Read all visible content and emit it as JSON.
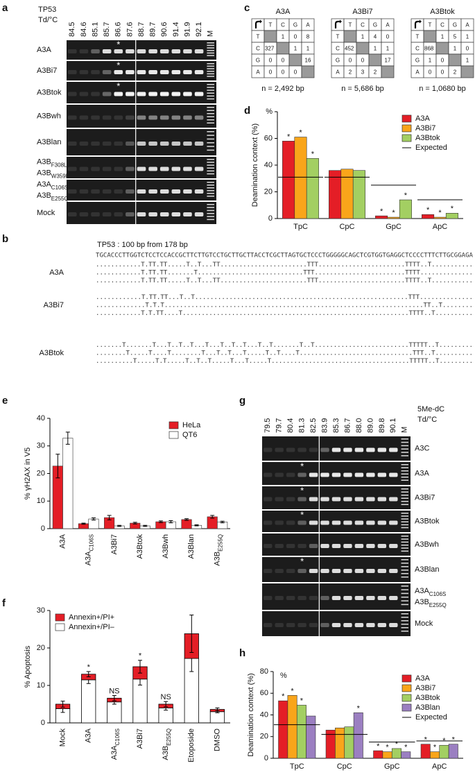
{
  "panel_labels": [
    "a",
    "b",
    "c",
    "d",
    "e",
    "f",
    "g",
    "h"
  ],
  "gel_a": {
    "header": [
      "TP53",
      "Td/°C"
    ],
    "temperatures": [
      "84.5",
      "84.6",
      "85.1",
      "85.7",
      "86.6",
      "87.6",
      "88.7",
      "89.7",
      "90.6",
      "91.4",
      "91.9",
      "92.1"
    ],
    "marker": "M",
    "lanes": [
      {
        "label": [
          "A3A"
        ],
        "mark": "*"
      },
      {
        "label": [
          "A3Bi7"
        ],
        "mark": "*"
      },
      {
        "label": [
          "A3Btok"
        ],
        "mark": "*"
      },
      {
        "label": [
          "A3Bwh"
        ]
      },
      {
        "label": [
          "A3Blan"
        ]
      },
      {
        "label": [
          {
            "base": "A3B",
            "sub": "F308L"
          },
          {
            "base": "A3B",
            "sub": "W359L"
          }
        ]
      },
      {
        "label": [
          {
            "base": "A3A",
            "sub": "C106S"
          },
          {
            "base": "A3B",
            "sub": "E255Q"
          }
        ]
      },
      {
        "label": [
          "Mock"
        ]
      }
    ]
  },
  "sequence_b": {
    "title": "TP53 : 100 bp from 178 bp",
    "reference": "TGCACCCTTGGTCTCCTCCACCGCTTCTTGTCCTGCTTGCTTACCTCGCTTAGTGCTCCCTGGGGGCAGCTCGTGGTGAGGCTCCCCTTTCTTGCGGAGA",
    "groups": [
      {
        "label": "A3A",
        "reads": [
          "............T.TT.TT.....T..T...TT.......................TTT.......................TTTT..T...........",
          "............T.TT.TT.......T............................TTT........................TTTT..............",
          "............T.TT.TT.....T..T...TT.......................TTT.......................TTTT..T..........."
        ]
      },
      {
        "label": "A3Bi7",
        "reads": [
          "............T.TT.TT...T..T........................................................TTT..............",
          ".............T.T.T....................................................................TT..T........",
          "............T.T.TT....T............................................................TTTT..T.........."
        ]
      },
      {
        "label": "A3Btok",
        "reads": [
          ".......T.......T...T..T..T...T...T..T..T...T..T.......T..T.........................TTTTT..T.........",
          "........T.....T....T........T...T..T...T.....T..T....T..............................TTT..T..........",
          "..........T.....T.T.....T..T..T.....T...T.....T.....................................TTTTT..T........."
        ]
      }
    ]
  },
  "tables_c": [
    {
      "title": "A3A",
      "columns": [
        "T",
        "C",
        "G",
        "A"
      ],
      "rows": [
        {
          "label": "T",
          "cells": [
            null,
            1,
            0,
            8
          ]
        },
        {
          "label": "C",
          "cells": [
            327,
            null,
            1,
            1
          ]
        },
        {
          "label": "G",
          "cells": [
            0,
            0,
            null,
            16
          ]
        },
        {
          "label": "A",
          "cells": [
            0,
            0,
            0,
            null
          ]
        }
      ],
      "caption": "n = 2,492  bp"
    },
    {
      "title": "A3Bi7",
      "columns": [
        "T",
        "C",
        "G",
        "A"
      ],
      "rows": [
        {
          "label": "T",
          "cells": [
            null,
            1,
            4,
            0
          ]
        },
        {
          "label": "C",
          "cells": [
            452,
            null,
            1,
            1
          ]
        },
        {
          "label": "G",
          "cells": [
            0,
            0,
            null,
            17
          ]
        },
        {
          "label": "A",
          "cells": [
            2,
            3,
            2,
            null
          ]
        }
      ],
      "caption": "n = 5,686  bp"
    },
    {
      "title": "A3Btok",
      "columns": [
        "T",
        "C",
        "G",
        "A"
      ],
      "rows": [
        {
          "label": "T",
          "cells": [
            null,
            1,
            5,
            1
          ]
        },
        {
          "label": "C",
          "cells": [
            868,
            null,
            1,
            0
          ]
        },
        {
          "label": "G",
          "cells": [
            1,
            0,
            null,
            1
          ]
        },
        {
          "label": "A",
          "cells": [
            0,
            0,
            2,
            null
          ]
        }
      ],
      "caption": "n = 1,0680  bp"
    }
  ],
  "gel_g": {
    "header": [
      "5Me-dC",
      "Td/°C"
    ],
    "temperatures": [
      "79.5",
      "79.7",
      "80.4",
      "81.3",
      "82.5",
      "83.9",
      "85.3",
      "86.7",
      "88.0",
      "89.0",
      "89.8",
      "90.1"
    ],
    "marker": "M",
    "lanes": [
      {
        "label": [
          "A3C"
        ]
      },
      {
        "label": [
          "A3A"
        ],
        "mark": "*"
      },
      {
        "label": [
          "A3Bi7"
        ],
        "mark": "*"
      },
      {
        "label": [
          "A3Btok"
        ],
        "mark": "*"
      },
      {
        "label": [
          "A3Bwh"
        ]
      },
      {
        "label": [
          "A3Blan"
        ],
        "mark": "*"
      },
      {
        "label": [
          {
            "base": "A3A",
            "sub": "C106S"
          },
          {
            "base": "A3B",
            "sub": "E255Q"
          }
        ]
      },
      {
        "label": [
          "Mock"
        ]
      }
    ]
  },
  "chart_data": [
    {
      "type": "bar",
      "ylabel": "Deamination context (%)",
      "categories": [
        "TpC",
        "CpC",
        "GpC",
        "ApC"
      ],
      "series": [
        {
          "name": "A3A",
          "color": "#e41e26",
          "values": [
            58,
            36,
            2,
            3
          ],
          "annotations": [
            "*",
            null,
            "*",
            "*"
          ]
        },
        {
          "name": "A3Bi7",
          "color": "#f9a51a",
          "values": [
            61,
            37,
            1,
            1
          ],
          "annotations": [
            "*",
            null,
            "*",
            "*"
          ]
        },
        {
          "name": "A3Btok",
          "color": "#a3cf62",
          "values": [
            45,
            36,
            14,
            4
          ],
          "annotations": [
            "*",
            null,
            "*",
            "*"
          ]
        }
      ],
      "expected": {
        "name": "Expected",
        "color": "#000000",
        "values": [
          31,
          31,
          25,
          14
        ]
      },
      "ylim": [
        0,
        80
      ],
      "yticks": [
        0,
        20,
        40,
        60,
        {
          "value": 80,
          "label": "%"
        }
      ],
      "legend": "upper right"
    },
    {
      "type": "bar",
      "ylabel": "% γH2AX in V5",
      "categories": [
        "A3A",
        {
          "base": "A3A",
          "sub": "C106S"
        },
        "A3Bi7",
        "A3Btok",
        "A3Bwh",
        "A3Blan",
        {
          "base": "A3B",
          "sub": "E255Q"
        }
      ],
      "series": [
        {
          "name": "HeLa",
          "color": "#e41e26",
          "values": [
            22.7,
            1.8,
            4.0,
            2.0,
            2.5,
            3.3,
            4.3
          ],
          "errors": [
            4.3,
            0.2,
            0.8,
            0.3,
            0.3,
            0.3,
            0.5
          ]
        },
        {
          "name": "QT6",
          "color": "#ffffff",
          "values": [
            32.8,
            3.5,
            1.0,
            1.0,
            2.5,
            1.2,
            2.4
          ],
          "errors": [
            2.2,
            0.4,
            0.2,
            0.2,
            0.4,
            0.2,
            0.3
          ]
        }
      ],
      "ylim": [
        0,
        40
      ],
      "yticks": [
        0,
        10,
        20,
        30,
        40
      ],
      "legend": "upper right"
    },
    {
      "type": "bar",
      "stacked": true,
      "ylabel": "% Apoptosis",
      "categories": [
        "Mock",
        "A3A",
        {
          "base": "A3A",
          "sub": "C106S"
        },
        "A3Bi7",
        {
          "base": "A3B",
          "sub": "E255Q"
        },
        "Etoposide",
        "DMSO"
      ],
      "series": [
        {
          "name": "Annexin+/PI–",
          "color": "#ffffff",
          "values": [
            3.8,
            11.5,
            5.6,
            11.7,
            4.0,
            17.2,
            3.0
          ],
          "errors": [
            1.0,
            1.0,
            0.6,
            1.6,
            0.6,
            3.5,
            0.3
          ]
        },
        {
          "name": "Annexin+/PI+",
          "color": "#e41e26",
          "values": [
            1.2,
            1.5,
            1.0,
            3.3,
            1.0,
            6.6,
            0.6
          ],
          "errors": [
            0.8,
            0.7,
            0.7,
            1.7,
            0.7,
            5.0,
            0.4
          ],
          "annotations": [
            null,
            "*",
            "NS",
            "*",
            "NS",
            null,
            null
          ]
        }
      ],
      "ylim": [
        0,
        30
      ],
      "yticks": [
        0,
        10,
        20,
        30
      ],
      "legend": "upper left"
    },
    {
      "type": "bar",
      "ylabel": "Deamination context (%)",
      "unit_label": "%",
      "categories": [
        "TpC",
        "CpC",
        "GpC",
        "ApC"
      ],
      "series": [
        {
          "name": "A3A",
          "color": "#e41e26",
          "values": [
            53,
            26,
            7,
            13
          ],
          "annotations": [
            "*",
            null,
            "*",
            "*"
          ]
        },
        {
          "name": "A3Bi7",
          "color": "#f9a51a",
          "values": [
            58,
            28,
            6,
            6
          ],
          "annotations": [
            "*",
            null,
            "*",
            "*"
          ]
        },
        {
          "name": "A3Btok",
          "color": "#a3cf62",
          "values": [
            49,
            29,
            9,
            12
          ],
          "annotations": [
            "*",
            null,
            "*",
            "*"
          ]
        },
        {
          "name": "A3Blan",
          "color": "#9b7fc1",
          "values": [
            39,
            42,
            6,
            13
          ],
          "annotations": [
            null,
            "*",
            "*",
            "*"
          ]
        }
      ],
      "expected": {
        "name": "Expected",
        "color": "#000000",
        "values": [
          31,
          22,
          15,
          16
        ]
      },
      "ylim": [
        0,
        80
      ],
      "yticks": [
        0,
        20,
        40,
        60,
        80
      ],
      "legend": "upper right"
    }
  ]
}
